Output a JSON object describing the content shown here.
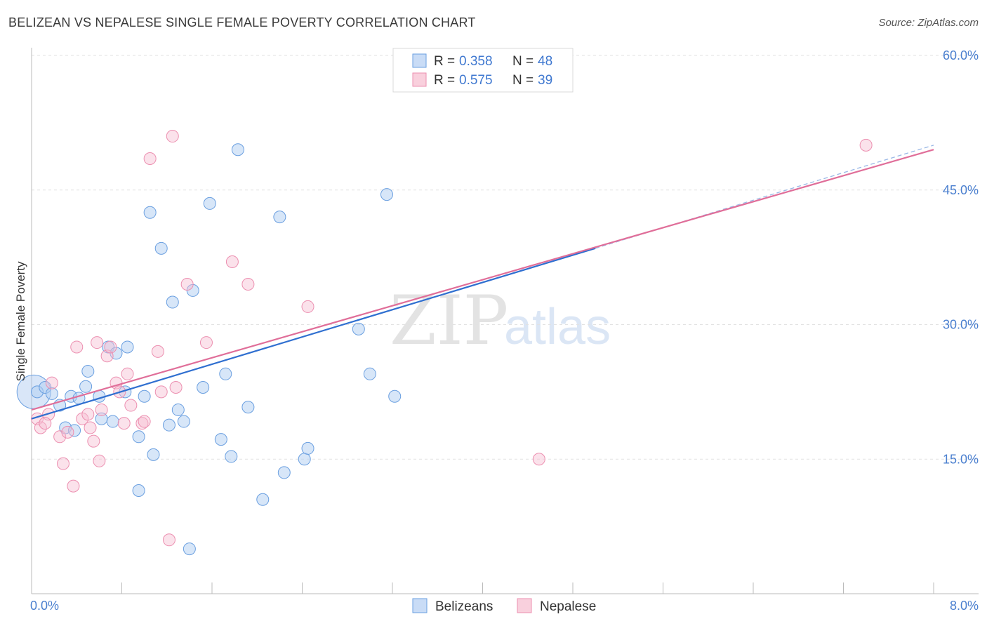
{
  "title": "BELIZEAN VS NEPALESE SINGLE FEMALE POVERTY CORRELATION CHART",
  "source": "Source: ZipAtlas.com",
  "watermark": {
    "zip": "ZIP",
    "atlas": "atlas"
  },
  "legend": {
    "items": [
      {
        "r_label": "R = ",
        "r_value": "0.358",
        "n_label": "N = ",
        "n_value": "48"
      },
      {
        "r_label": "R = ",
        "r_value": "0.575",
        "n_label": "N = ",
        "n_value": "39"
      }
    ]
  },
  "chart_data": {
    "type": "scatter",
    "title": "BELIZEAN VS NEPALESE SINGLE FEMALE POVERTY CORRELATION CHART",
    "xlabel": "",
    "ylabel": "Single Female Poverty",
    "xlim": [
      0,
      8
    ],
    "ylim": [
      0,
      60
    ],
    "x_tick_labels": [
      "0.0%",
      "8.0%"
    ],
    "y_ticks": [
      15,
      30,
      45,
      60
    ],
    "y_tick_labels": [
      "15.0%",
      "30.0%",
      "45.0%",
      "60.0%"
    ],
    "grid": true,
    "legend_position": "top-center",
    "colors": {
      "Belizeans": "#6a9fe0",
      "Nepalese": "#ec8fb0",
      "belize_line": "#2f6fd0",
      "nepal_line": "#e06e99"
    },
    "series": [
      {
        "name": "Belizeans",
        "R": 0.358,
        "N": 48,
        "trend": {
          "x": [
            0.0,
            5.0
          ],
          "y": [
            19.5,
            38.5
          ],
          "dashed_to": [
            8.0,
            50.0
          ]
        },
        "points": [
          [
            0.05,
            22.5
          ],
          [
            0.12,
            23.0
          ],
          [
            0.18,
            22.3
          ],
          [
            0.25,
            21.0
          ],
          [
            0.3,
            18.5
          ],
          [
            0.35,
            22.0
          ],
          [
            0.38,
            18.2
          ],
          [
            0.42,
            21.8
          ],
          [
            0.48,
            23.1
          ],
          [
            0.5,
            24.8
          ],
          [
            0.6,
            22.0
          ],
          [
            0.62,
            19.5
          ],
          [
            0.68,
            27.5
          ],
          [
            0.72,
            19.2
          ],
          [
            0.75,
            26.8
          ],
          [
            0.83,
            22.5
          ],
          [
            0.85,
            27.5
          ],
          [
            0.95,
            17.5
          ],
          [
            1.0,
            22.0
          ],
          [
            1.05,
            42.5
          ],
          [
            1.08,
            15.5
          ],
          [
            1.15,
            38.5
          ],
          [
            1.22,
            18.8
          ],
          [
            1.25,
            32.5
          ],
          [
            1.3,
            20.5
          ],
          [
            1.35,
            19.2
          ],
          [
            1.4,
            5.0
          ],
          [
            1.43,
            33.8
          ],
          [
            1.52,
            23.0
          ],
          [
            1.58,
            43.5
          ],
          [
            1.68,
            17.2
          ],
          [
            1.72,
            24.5
          ],
          [
            1.77,
            15.3
          ],
          [
            1.83,
            49.5
          ],
          [
            1.92,
            20.8
          ],
          [
            2.05,
            10.5
          ],
          [
            2.2,
            42.0
          ],
          [
            2.24,
            13.5
          ],
          [
            2.42,
            15.0
          ],
          [
            2.45,
            16.2
          ],
          [
            2.9,
            29.5
          ],
          [
            3.0,
            24.5
          ],
          [
            3.15,
            44.5
          ],
          [
            3.22,
            22.0
          ],
          [
            0.95,
            11.5
          ]
        ]
      },
      {
        "name": "Nepalese",
        "R": 0.575,
        "N": 39,
        "trend": {
          "x": [
            0.0,
            8.0
          ],
          "y": [
            20.5,
            49.5
          ]
        },
        "points": [
          [
            0.05,
            19.5
          ],
          [
            0.08,
            18.5
          ],
          [
            0.15,
            20.0
          ],
          [
            0.18,
            23.5
          ],
          [
            0.25,
            17.5
          ],
          [
            0.28,
            14.5
          ],
          [
            0.32,
            18.0
          ],
          [
            0.37,
            12.0
          ],
          [
            0.4,
            27.5
          ],
          [
            0.45,
            19.5
          ],
          [
            0.5,
            20.0
          ],
          [
            0.52,
            18.5
          ],
          [
            0.55,
            17.0
          ],
          [
            0.58,
            28.0
          ],
          [
            0.62,
            20.5
          ],
          [
            0.67,
            26.5
          ],
          [
            0.7,
            27.5
          ],
          [
            0.75,
            23.5
          ],
          [
            0.78,
            22.5
          ],
          [
            0.82,
            19.0
          ],
          [
            0.85,
            24.5
          ],
          [
            0.88,
            21.0
          ],
          [
            0.98,
            19.0
          ],
          [
            1.05,
            48.5
          ],
          [
            1.12,
            27.0
          ],
          [
            1.15,
            22.5
          ],
          [
            1.22,
            6.0
          ],
          [
            1.25,
            51.0
          ],
          [
            1.28,
            23.0
          ],
          [
            1.38,
            34.5
          ],
          [
            1.55,
            28.0
          ],
          [
            1.78,
            37.0
          ],
          [
            1.92,
            34.5
          ],
          [
            2.45,
            32.0
          ],
          [
            4.5,
            15.0
          ],
          [
            7.4,
            50.0
          ],
          [
            0.12,
            19.0
          ],
          [
            0.6,
            14.8
          ],
          [
            1.0,
            19.2
          ]
        ]
      }
    ]
  },
  "bottom_legend": {
    "items": [
      "Belizeans",
      "Nepalese"
    ]
  }
}
